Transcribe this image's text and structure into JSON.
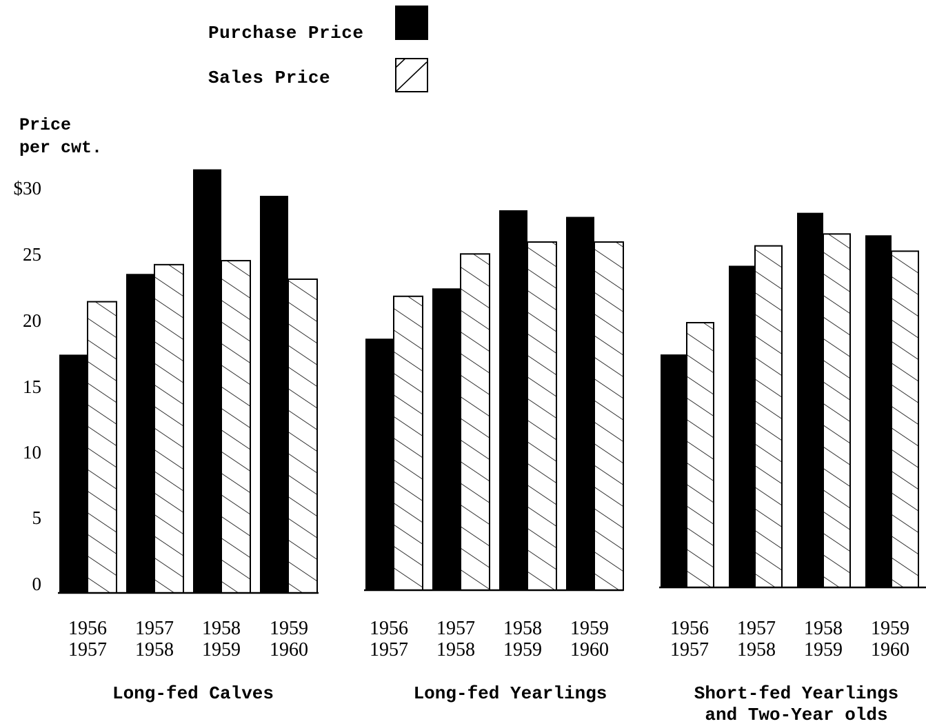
{
  "legend": {
    "purchase_label": "Purchase Price",
    "sales_label": "Sales Price"
  },
  "chart_data": {
    "type": "bar",
    "ylabel_line1": "Price",
    "ylabel_line2": "per cwt.",
    "yticks": [
      "$30",
      "25",
      "20",
      "15",
      "10",
      "5",
      "0"
    ],
    "ylim": [
      0,
      30
    ],
    "series_names": [
      "Purchase Price",
      "Sales Price"
    ],
    "colors": {
      "purchase": "#000000",
      "sales_hatch": "#000000",
      "background": "#ffffff"
    },
    "groups": [
      {
        "name": "Long-fed Calves",
        "categories": [
          {
            "line1": "1956",
            "line2": "1957"
          },
          {
            "line1": "1957",
            "line2": "1958"
          },
          {
            "line1": "1958",
            "line2": "1959"
          },
          {
            "line1": "1959",
            "line2": "1960"
          }
        ],
        "purchase": [
          18.0,
          24.1,
          32.0,
          30.0
        ],
        "sales": [
          22.0,
          24.8,
          25.1,
          23.7
        ]
      },
      {
        "name": "Long-fed Yearlings",
        "categories": [
          {
            "line1": "1956",
            "line2": "1957"
          },
          {
            "line1": "1957",
            "line2": "1958"
          },
          {
            "line1": "1958",
            "line2": "1959"
          },
          {
            "line1": "1959",
            "line2": "1960"
          }
        ],
        "purchase": [
          19.0,
          22.8,
          28.7,
          28.2
        ],
        "sales": [
          22.2,
          25.4,
          26.3,
          26.3
        ]
      },
      {
        "name": "Short-fed Yearlings\nand Two-Year olds",
        "categories": [
          {
            "line1": "1956",
            "line2": "1957"
          },
          {
            "line1": "1957",
            "line2": "1958"
          },
          {
            "line1": "1958",
            "line2": "1959"
          },
          {
            "line1": "1959",
            "line2": "1960"
          }
        ],
        "purchase": [
          17.6,
          24.3,
          28.3,
          26.6
        ],
        "sales": [
          20.0,
          25.8,
          26.7,
          25.4
        ]
      }
    ]
  }
}
